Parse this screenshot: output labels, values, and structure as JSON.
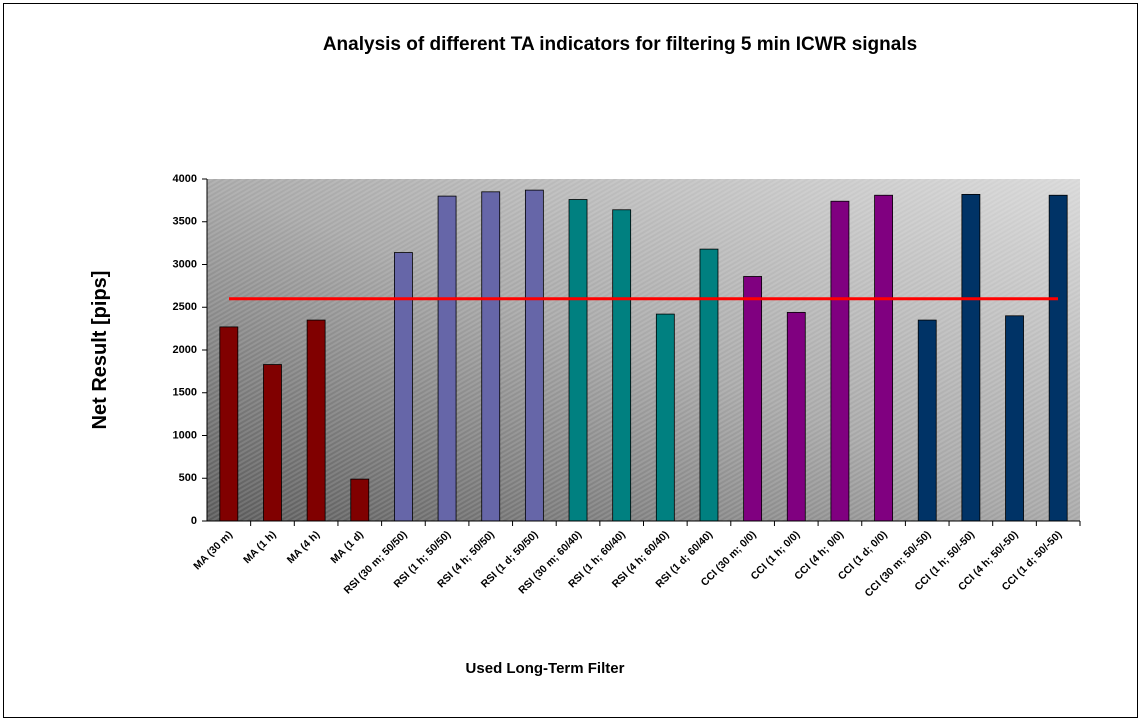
{
  "chart_data": {
    "type": "bar",
    "title": "Analysis of different TA indicators for filtering 5 min ICWR signals",
    "ylabel": "Net Result [pips]",
    "xlabel": "Used Long-Term Filter",
    "categories": [
      "MA (30 m)",
      "MA (1 h)",
      "MA (4 h)",
      "MA (1 d)",
      "RSI (30 m; 50/50)",
      "RSI (1 h; 50/50)",
      "RSI (4 h; 50/50)",
      "RSI (1 d; 50/50)",
      "RSI (30 m; 60/40)",
      "RSI (1 h; 60/40)",
      "RSI (4 h; 60/40)",
      "RSI (1 d; 60/40)",
      "CCI (30 m; 0/0)",
      "CCI (1 h; 0/0)",
      "CCI (4 h; 0/0)",
      "CCI (1 d; 0/0)",
      "CCI (30 m; 50/-50)",
      "CCI (1 h; 50/-50)",
      "CCI (4 h; 50/-50)",
      "CCI (1 d; 50/-50)"
    ],
    "values": [
      2270,
      1830,
      2350,
      490,
      3140,
      3800,
      3850,
      3870,
      3760,
      3640,
      2420,
      3180,
      2860,
      2440,
      3740,
      3810,
      2350,
      3820,
      2400,
      3810
    ],
    "colors": [
      "#800000",
      "#800000",
      "#800000",
      "#800000",
      "#6666a8",
      "#6666a8",
      "#6666a8",
      "#6666a8",
      "#008080",
      "#008080",
      "#008080",
      "#008080",
      "#800080",
      "#800080",
      "#800080",
      "#800080",
      "#003366",
      "#003366",
      "#003366",
      "#003366"
    ],
    "reference_line": {
      "value": 2600,
      "color": "#ff0000"
    },
    "ylim": [
      0,
      4000
    ],
    "yticks": [
      0,
      500,
      1000,
      1500,
      2000,
      2500,
      3000,
      3500,
      4000
    ],
    "grid": false
  }
}
